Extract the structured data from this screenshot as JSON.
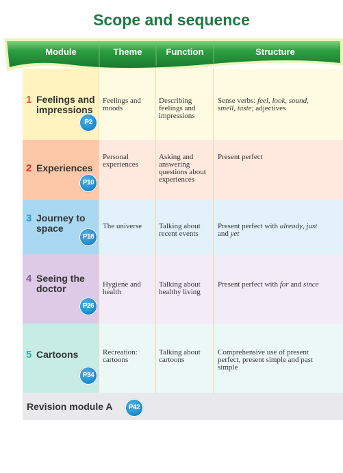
{
  "title": "Scope and sequence",
  "headers": [
    "Module",
    "Theme",
    "Function",
    "Structure"
  ],
  "rows": [
    {
      "number": "1",
      "module": "Feelings and impressions",
      "page": "P2",
      "theme": "Feelings and moods",
      "function": "Describing feelings and impressions",
      "structure": [
        {
          "text": "Sense verbs: ",
          "italic": false
        },
        {
          "text": "feel",
          "italic": true
        },
        {
          "text": ", ",
          "italic": false
        },
        {
          "text": "look",
          "italic": true
        },
        {
          "text": ", ",
          "italic": false
        },
        {
          "text": "sound",
          "italic": true
        },
        {
          "text": ", ",
          "italic": false
        },
        {
          "text": "smell",
          "italic": true
        },
        {
          "text": ", ",
          "italic": false
        },
        {
          "text": "taste",
          "italic": true
        },
        {
          "text": "; adjectives",
          "italic": false
        }
      ]
    },
    {
      "number": "2",
      "module": "Experiences",
      "page": "P10",
      "theme": "Personal experiences",
      "function": "Asking and answering questions about experiences",
      "structure": [
        {
          "text": "Present perfect",
          "italic": false
        }
      ]
    },
    {
      "number": "3",
      "module": "Journey to space",
      "page": "P18",
      "theme": "The universe",
      "function": "Talking about recent events",
      "structure": [
        {
          "text": "Present perfect with ",
          "italic": false
        },
        {
          "text": "already",
          "italic": true
        },
        {
          "text": ", ",
          "italic": false
        },
        {
          "text": "just",
          "italic": true
        },
        {
          "text": " and ",
          "italic": false
        },
        {
          "text": "yet",
          "italic": true
        }
      ]
    },
    {
      "number": "4",
      "module": "Seeing the doctor",
      "page": "P26",
      "theme": "Hygiene and health",
      "function": "Talking about healthy living",
      "structure": [
        {
          "text": "Present perfect with ",
          "italic": false
        },
        {
          "text": "for",
          "italic": true
        },
        {
          "text": " and ",
          "italic": false
        },
        {
          "text": "since",
          "italic": true
        }
      ]
    },
    {
      "number": "5",
      "module": "Cartoons",
      "page": "P34",
      "theme": "Recreation: cartoons",
      "function": "Talking about cartoons",
      "structure": [
        {
          "text": "Comprehensive use of present perfect, present simple and past simple",
          "italic": false
        }
      ]
    }
  ],
  "revision": {
    "label": "Revision module A",
    "page": "P42"
  }
}
